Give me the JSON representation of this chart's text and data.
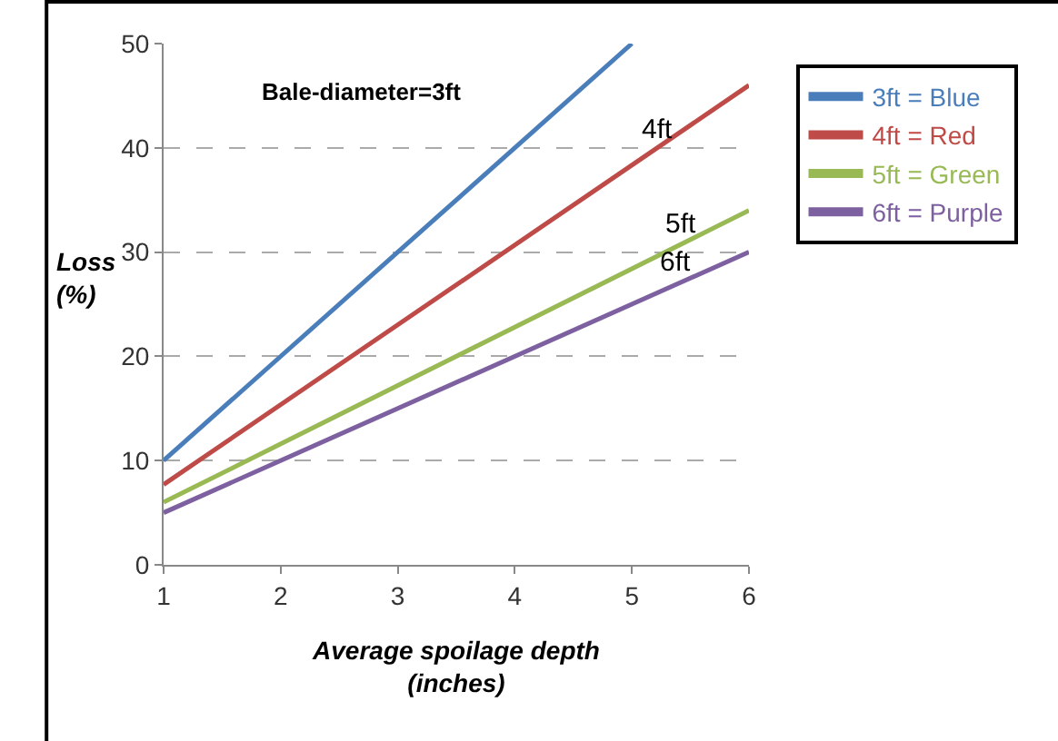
{
  "chart_data": {
    "type": "line",
    "xlabel": "Average spoilage depth\n(inches)",
    "ylabel": "Loss\n(%)",
    "x": [
      1,
      6
    ],
    "series": [
      {
        "name": "3ft = Blue",
        "color": "#4a7ebb",
        "x": [
          1,
          5
        ],
        "values": [
          10,
          50
        ]
      },
      {
        "name": "4ft = Red",
        "color": "#be4b48",
        "values": [
          7.7,
          46
        ]
      },
      {
        "name": "5ft = Green",
        "color": "#98b954",
        "values": [
          6,
          34
        ]
      },
      {
        "name": "6ft = Purple",
        "color": "#7d60a0",
        "values": [
          5,
          30
        ]
      }
    ],
    "annotations": [
      "Bale-diameter=3ft",
      "4ft",
      "5ft",
      "6ft"
    ],
    "xlim": [
      1,
      6
    ],
    "xticks": [
      1,
      2,
      3,
      4,
      5,
      6
    ],
    "ylim": [
      0,
      50
    ],
    "yticks": [
      0,
      10,
      20,
      30,
      40,
      50
    ],
    "grid": "y",
    "legend": "right",
    "marker": "none",
    "line_style": "solid"
  }
}
